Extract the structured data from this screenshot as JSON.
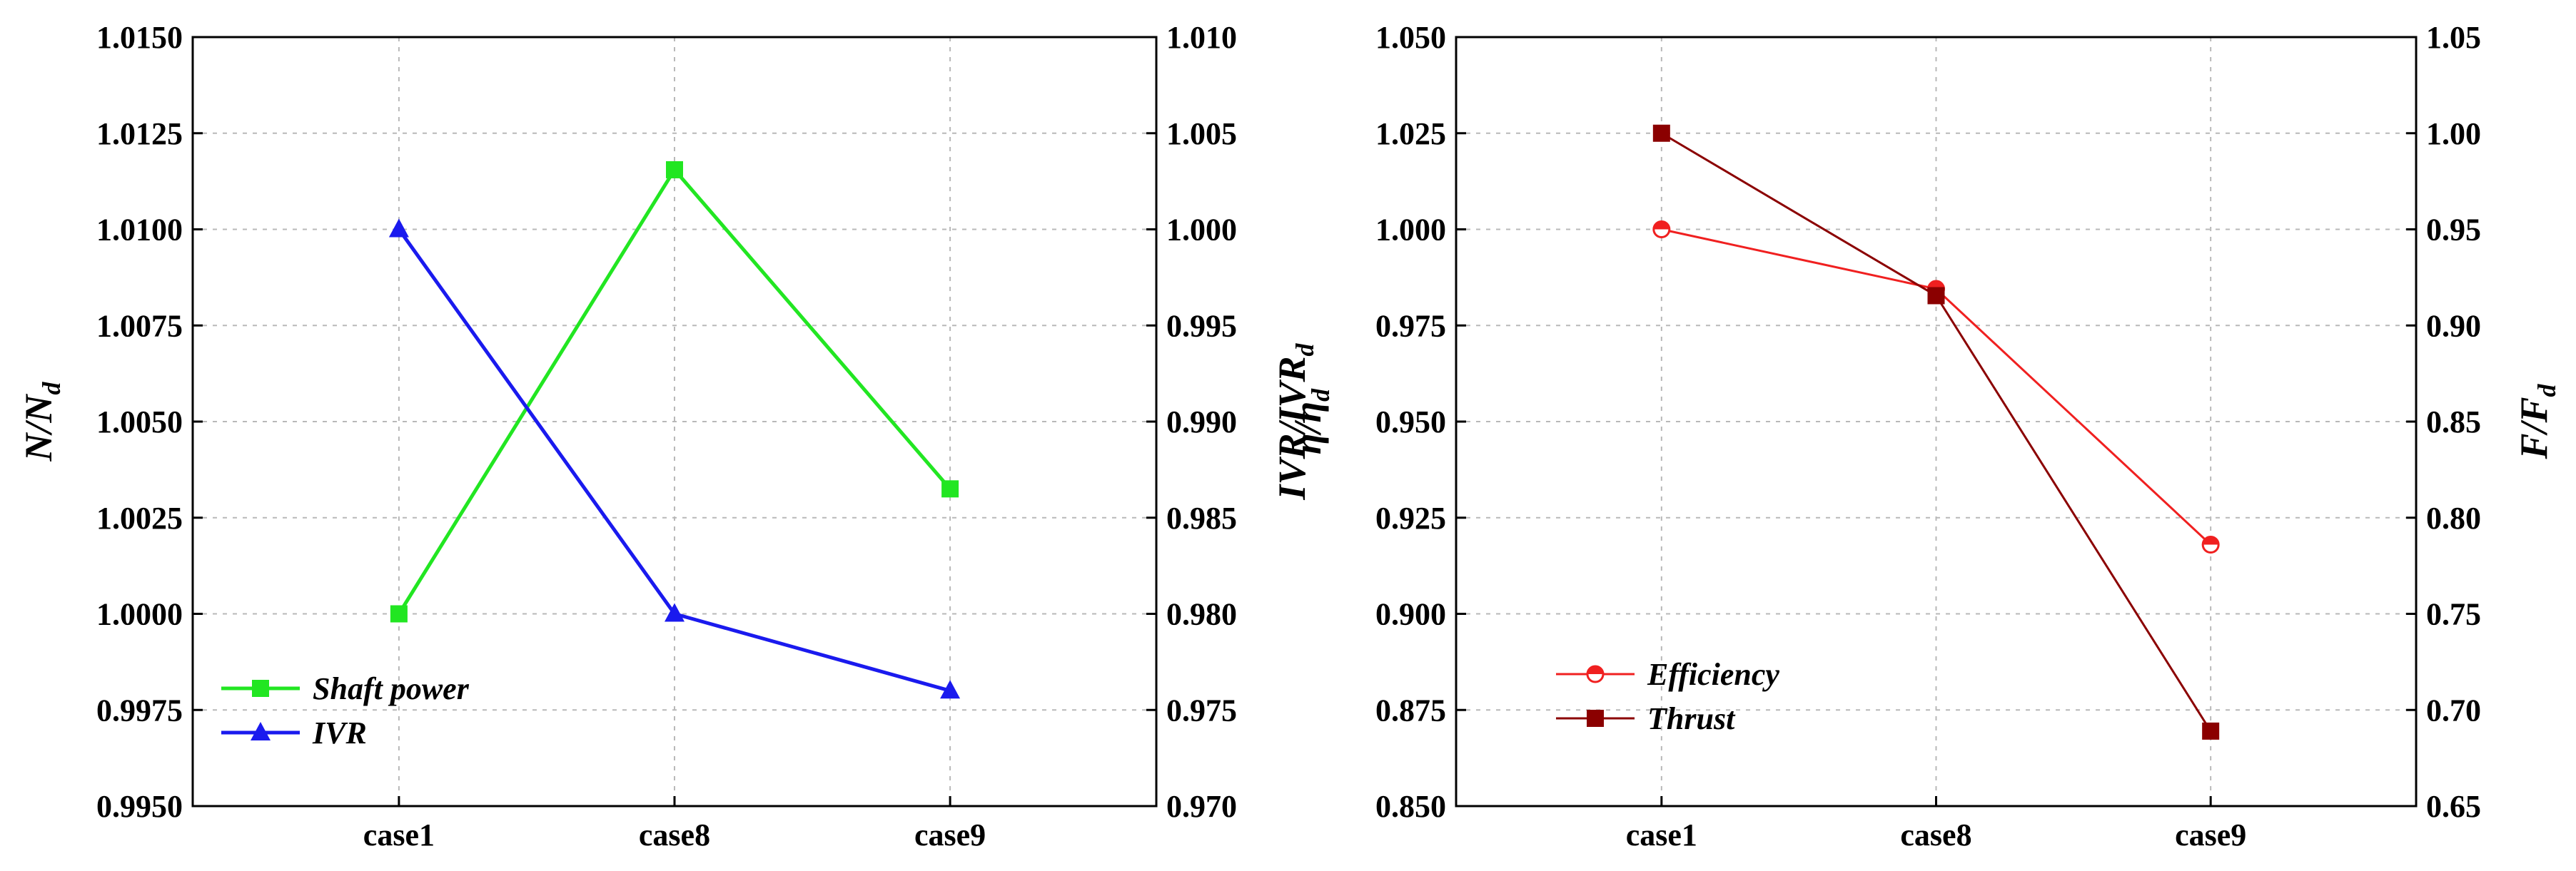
{
  "chart_data": [
    {
      "type": "line",
      "categories": [
        "case1",
        "case8",
        "case9"
      ],
      "left_axis": {
        "ylim": [
          0.995,
          1.015
        ],
        "ticks": [
          "0.9950",
          "0.9975",
          "1.0000",
          "1.0025",
          "1.0050",
          "1.0075",
          "1.0100",
          "1.0125",
          "1.0150"
        ]
      },
      "right_axis": {
        "ylim": [
          0.97,
          1.01
        ],
        "ticks": [
          "0.970",
          "0.975",
          "0.980",
          "0.985",
          "0.990",
          "0.995",
          "1.000",
          "1.005",
          "1.010"
        ]
      },
      "ylabel": {
        "main": "N/N",
        "sub": "d"
      },
      "ylabel_right": {
        "main": "IVR/IVR",
        "sub": "d"
      },
      "grid": true,
      "legend_position": "bottom-left",
      "series": [
        {
          "name": "Shaft power",
          "axis": "left",
          "values": [
            1.0,
            1.01155,
            1.00325
          ],
          "color": "#22e622",
          "marker": "square"
        },
        {
          "name": "IVR",
          "axis": "right",
          "values": [
            1.0,
            0.98,
            0.976
          ],
          "color": "#1a1aee",
          "marker": "triangle"
        }
      ]
    },
    {
      "type": "line",
      "categories": [
        "case1",
        "case8",
        "case9"
      ],
      "left_axis": {
        "ylim": [
          0.85,
          1.05
        ],
        "ticks": [
          "0.850",
          "0.875",
          "0.900",
          "0.925",
          "0.950",
          "0.975",
          "1.000",
          "1.025",
          "1.050"
        ]
      },
      "right_axis": {
        "ylim": [
          0.65,
          1.05
        ],
        "ticks": [
          "0.65",
          "0.70",
          "0.75",
          "0.80",
          "0.85",
          "0.90",
          "0.95",
          "1.00",
          "1.05"
        ]
      },
      "ylabel": {
        "main": "η/η",
        "sub": "d"
      },
      "ylabel_right": {
        "main": "F/F",
        "sub": "d"
      },
      "grid": true,
      "legend_position": "bottom-left",
      "series": [
        {
          "name": "Efficiency",
          "axis": "left",
          "values": [
            1.0,
            0.9845,
            0.918
          ],
          "color": "#f02020",
          "marker": "half-circle"
        },
        {
          "name": "Thrust",
          "axis": "right",
          "values": [
            1.0,
            0.9155,
            0.689
          ],
          "color": "#8b0000",
          "marker": "square"
        }
      ]
    }
  ]
}
